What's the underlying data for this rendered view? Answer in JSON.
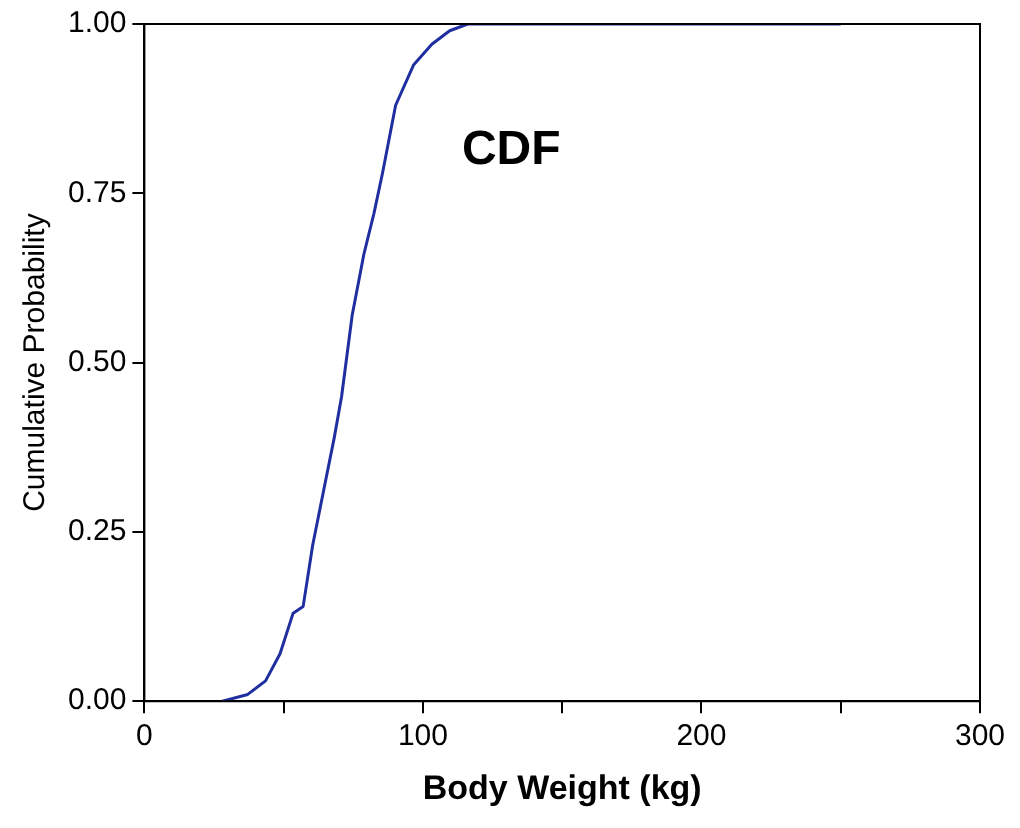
{
  "chart_data": {
    "type": "line",
    "xlabel": "Body Weight (kg)",
    "ylabel": "Cumulative Probability",
    "annotations": [
      "CDF"
    ],
    "series": [
      {
        "color": "#1f2fa0",
        "x": [
          28,
          37.1,
          43.5,
          48.7,
          53.4,
          57,
          60.4,
          64.3,
          68.2,
          70.8,
          74.6,
          78.8,
          82.4,
          85.5,
          90.2,
          96.7,
          103.2,
          109.6,
          116.1,
          130.4,
          250
        ],
        "values": [
          0,
          0.01,
          0.03,
          0.07,
          0.13,
          0.14,
          0.23,
          0.31,
          0.39,
          0.45,
          0.57,
          0.66,
          0.72,
          0.78,
          0.88,
          0.94,
          0.97,
          0.99,
          1,
          1,
          1
        ]
      }
    ],
    "xlim": [
      0,
      300
    ],
    "xticks": [
      0,
      {
        "value": 50,
        "label": null
      },
      100,
      {
        "value": 150,
        "label": null
      },
      200,
      {
        "value": 250,
        "label": null
      },
      300
    ],
    "ylim": [
      0,
      1
    ],
    "yticks": [
      {
        "value": 0,
        "label": "0.00"
      },
      {
        "value": 0.25,
        "label": "0.25"
      },
      {
        "value": 0.5,
        "label": "0.50"
      },
      {
        "value": 0.75,
        "label": "0.75"
      },
      {
        "value": 1,
        "label": "1.00"
      }
    ],
    "grid": false,
    "legend": false,
    "marker": "none",
    "line_style": "solid"
  }
}
